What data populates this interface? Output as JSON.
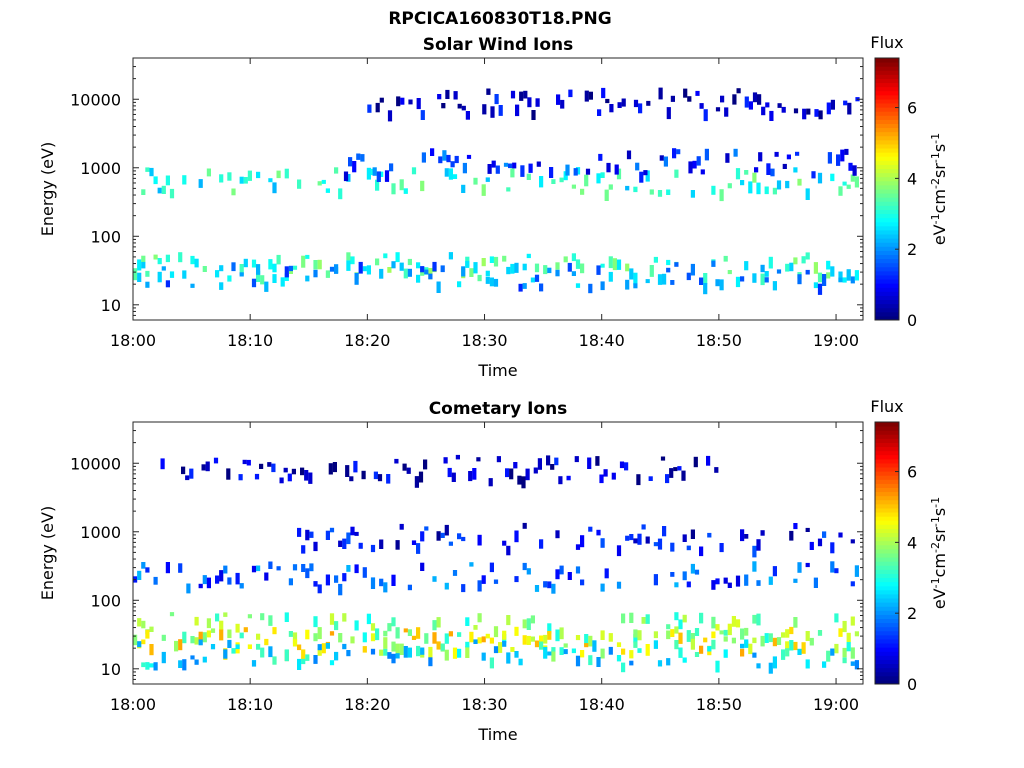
{
  "figure_title": "RPCICA160830T18.PNG",
  "colormap": [
    "#00007f",
    "#0000ff",
    "#007fff",
    "#00ffff",
    "#7fff7f",
    "#ffff00",
    "#ff7f00",
    "#ff0000",
    "#7f0000"
  ],
  "chart_data": [
    {
      "type": "heatmap",
      "title": "Solar Wind Ions",
      "xlabel": "Time",
      "ylabel": "Energy (eV)",
      "x_ticks": [
        "18:00",
        "18:10",
        "18:20",
        "18:30",
        "18:40",
        "18:50",
        "19:00"
      ],
      "x_tick_minutes": [
        0,
        10,
        20,
        30,
        40,
        50,
        60
      ],
      "xlim_minutes": [
        0,
        62.3
      ],
      "yscale": "log",
      "y_ticks": [
        "10",
        "100",
        "1000",
        "10000"
      ],
      "y_tick_values": [
        10,
        100,
        1000,
        10000
      ],
      "ylim": [
        6,
        40000
      ],
      "colorbar": {
        "label": "Flux",
        "units": "eV-1cm-2sr-1s-1",
        "ticks": [
          "0",
          "2",
          "4",
          "6"
        ],
        "tick_values": [
          0,
          2,
          4,
          6
        ],
        "range": [
          0,
          7.4
        ]
      },
      "bands": [
        {
          "energy_center": 40,
          "flux_level": 3.2,
          "start_minute": 0,
          "end_minute": 62.3
        },
        {
          "energy_center": 30,
          "flux_level": 2.0,
          "start_minute": 0,
          "end_minute": 62.3
        },
        {
          "energy_center": 700,
          "flux_level": 3.0,
          "start_minute": 0,
          "end_minute": 62.3
        },
        {
          "energy_center": 1300,
          "flux_level": 1.2,
          "start_minute": 18,
          "end_minute": 62.3
        },
        {
          "energy_center": 10000,
          "flux_level": 0.6,
          "start_minute": 20,
          "end_minute": 62.3
        }
      ]
    },
    {
      "type": "heatmap",
      "title": "Cometary Ions",
      "xlabel": "Time",
      "ylabel": "Energy (eV)",
      "x_ticks": [
        "18:00",
        "18:10",
        "18:20",
        "18:30",
        "18:40",
        "18:50",
        "19:00"
      ],
      "x_tick_minutes": [
        0,
        10,
        20,
        30,
        40,
        50,
        60
      ],
      "xlim_minutes": [
        0,
        62.3
      ],
      "yscale": "log",
      "y_ticks": [
        "10",
        "100",
        "1000",
        "10000"
      ],
      "y_tick_values": [
        10,
        100,
        1000,
        10000
      ],
      "ylim": [
        6,
        40000
      ],
      "colorbar": {
        "label": "Flux",
        "units": "eV-1cm-2sr-1s-1",
        "ticks": [
          "0",
          "2",
          "4",
          "6"
        ],
        "tick_values": [
          0,
          2,
          4,
          6
        ],
        "range": [
          0,
          7.4
        ]
      },
      "bands": [
        {
          "energy_center": 45,
          "flux_level": 3.6,
          "start_minute": 0,
          "end_minute": 62.3
        },
        {
          "energy_center": 28,
          "flux_level": 4.5,
          "start_minute": 0,
          "end_minute": 62.3
        },
        {
          "energy_center": 18,
          "flux_level": 2.6,
          "start_minute": 0,
          "end_minute": 62.3
        },
        {
          "energy_center": 250,
          "flux_level": 1.5,
          "start_minute": 0,
          "end_minute": 62.3
        },
        {
          "energy_center": 900,
          "flux_level": 0.9,
          "start_minute": 14,
          "end_minute": 62.3
        },
        {
          "energy_center": 9000,
          "flux_level": 0.5,
          "start_minute": 2,
          "end_minute": 50
        }
      ]
    }
  ]
}
